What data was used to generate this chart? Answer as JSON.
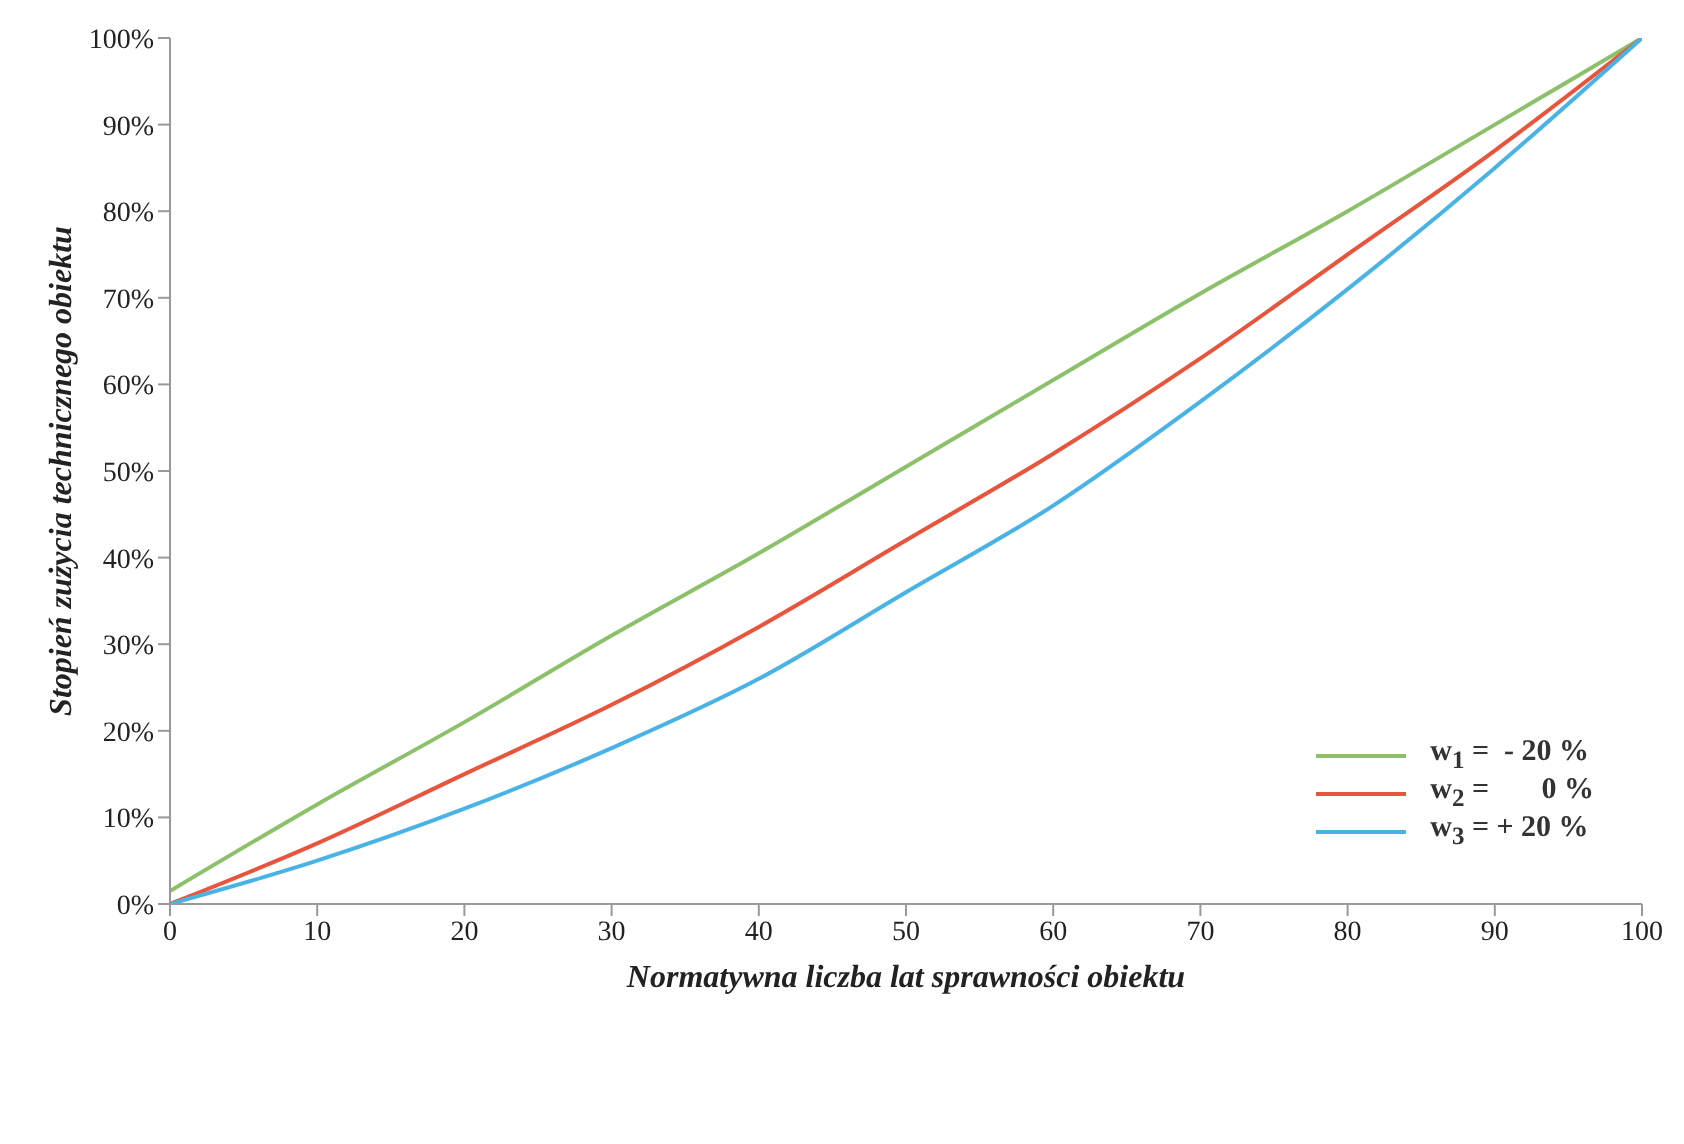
{
  "chart_data": {
    "type": "line",
    "xlabel": "Normatywna liczba lat sprawności obiektu",
    "ylabel": "Stopień zużycia technicznego obiektu",
    "x": [
      0,
      10,
      20,
      30,
      40,
      50,
      60,
      70,
      80,
      90,
      100
    ],
    "series": [
      {
        "name": "w$_{1}$ =  - 20 %",
        "color": "#8dc06a",
        "values": [
          1.5,
          11.5,
          21,
          31,
          40.5,
          50.5,
          60.5,
          70.5,
          80,
          90,
          100
        ]
      },
      {
        "name": "w$_{2}$ =       0 %",
        "color": "#e8543c",
        "values": [
          0,
          7,
          15,
          23,
          32,
          42,
          52,
          63,
          75,
          87,
          100
        ]
      },
      {
        "name": "w$_{3}$ = + 20 %",
        "color": "#4ab3e6",
        "values": [
          0,
          5,
          11,
          18,
          26,
          36,
          46,
          58,
          71,
          85,
          100
        ]
      }
    ],
    "xlim": [
      0,
      100
    ],
    "xticks": [
      0,
      10,
      20,
      30,
      40,
      50,
      60,
      70,
      80,
      90,
      100
    ],
    "ylim": [
      0,
      100
    ],
    "yticks": [
      {
        "value": 0,
        "label": "0%"
      },
      {
        "value": 10,
        "label": "10%"
      },
      {
        "value": 20,
        "label": "20%"
      },
      {
        "value": 30,
        "label": "30%"
      },
      {
        "value": 40,
        "label": "40%"
      },
      {
        "value": 50,
        "label": "50%"
      },
      {
        "value": 60,
        "label": "60%"
      },
      {
        "value": 70,
        "label": "70%"
      },
      {
        "value": 80,
        "label": "80%"
      },
      {
        "value": 90,
        "label": "90%"
      },
      {
        "value": 100,
        "label": "100%"
      }
    ],
    "grid": false,
    "legend": "right",
    "marker": "none",
    "line_style": "solid"
  }
}
